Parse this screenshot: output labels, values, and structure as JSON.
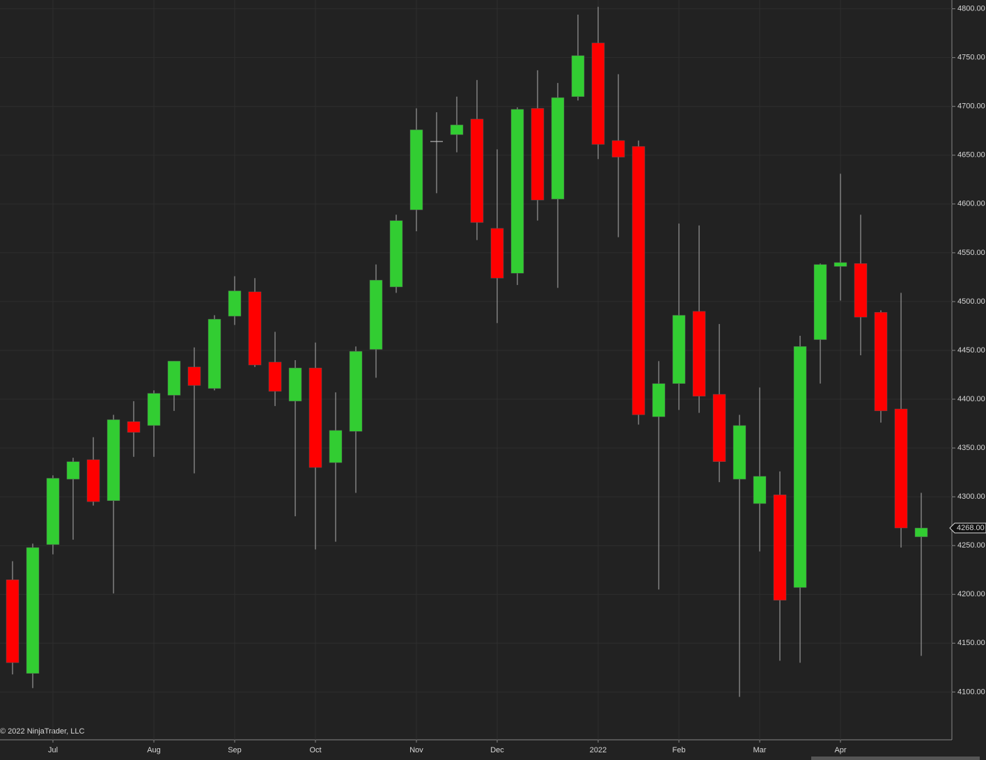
{
  "chart_data": {
    "type": "candlestick",
    "watermark": "© 2022 NinjaTrader, LLC",
    "categories": [
      null,
      null,
      "Jul",
      null,
      null,
      null,
      null,
      "Aug",
      null,
      null,
      null,
      "Sep",
      null,
      null,
      null,
      "Oct",
      null,
      null,
      null,
      null,
      "Nov",
      null,
      null,
      null,
      "Dec",
      null,
      null,
      null,
      null,
      "2022",
      null,
      null,
      null,
      "Feb",
      null,
      null,
      null,
      "Mar",
      null,
      null,
      null,
      "Apr",
      null,
      null,
      null,
      null
    ],
    "open": [
      4215,
      4119,
      4251,
      4318,
      4338,
      4296,
      4377,
      4373,
      4404,
      4433,
      4411,
      4485,
      4510,
      4438,
      4398,
      4432,
      4335,
      4367,
      4451,
      4515,
      4594,
      4664,
      4671,
      4687,
      4575,
      4529,
      4698,
      4605,
      4710,
      4765,
      4665,
      4659,
      4382,
      4416,
      4490,
      4405,
      4318,
      4293,
      4302,
      4207,
      4461,
      4536,
      4539,
      4489,
      4390,
      4259
    ],
    "high": [
      4234,
      4252,
      4322,
      4340,
      4361,
      4384,
      4398,
      4409,
      4439,
      4453,
      4486,
      4526,
      4524,
      4469,
      4440,
      4458,
      4407,
      4454,
      4538,
      4589,
      4698,
      4694,
      4710,
      4727,
      4656,
      4699,
      4737,
      4724,
      4794,
      4802,
      4733,
      4665,
      4439,
      4580,
      4578,
      4477,
      4384,
      4412,
      4326,
      4465,
      4539,
      4631,
      4589,
      4491,
      4509,
      4304
    ],
    "low": [
      4118,
      4104,
      4241,
      4256,
      4291,
      4201,
      4341,
      4341,
      4388,
      4324,
      4409,
      4476,
      4433,
      4393,
      4280,
      4246,
      4254,
      4304,
      4422,
      4509,
      4572,
      4611,
      4653,
      4563,
      4478,
      4517,
      4583,
      4514,
      4706,
      4646,
      4566,
      4374,
      4205,
      4389,
      4386,
      4315,
      4095,
      4244,
      4132,
      4130,
      4416,
      4501,
      4445,
      4376,
      4248,
      4137
    ],
    "close": [
      4130,
      4248,
      4319,
      4336,
      4295,
      4379,
      4366,
      4406,
      4439,
      4414,
      4482,
      4511,
      4435,
      4408,
      4432,
      4330,
      4368,
      4449,
      4522,
      4583,
      4676,
      4664,
      4681,
      4581,
      4524,
      4697,
      4604,
      4709,
      4752,
      4661,
      4648,
      4384,
      4416,
      4486,
      4403,
      4336,
      4373,
      4321,
      4194,
      4454,
      4538,
      4540,
      4484,
      4388,
      4268,
      4268
    ],
    "up_color": "#32cd32",
    "down_color": "#ff0000",
    "wick_color": "#b0b0b0",
    "last_price": {
      "value": 4268,
      "label": "4268.00"
    },
    "ylim": [
      4051,
      4809
    ],
    "yticks": [
      {
        "value": 4100,
        "label": "4100.00"
      },
      {
        "value": 4150,
        "label": "4150.00"
      },
      {
        "value": 4200,
        "label": "4200.00"
      },
      {
        "value": 4250,
        "label": "4250.00"
      },
      {
        "value": 4300,
        "label": "4300.00"
      },
      {
        "value": 4350,
        "label": "4350.00"
      },
      {
        "value": 4400,
        "label": "4400.00"
      },
      {
        "value": 4450,
        "label": "4450.00"
      },
      {
        "value": 4500,
        "label": "4500.00"
      },
      {
        "value": 4550,
        "label": "4550.00"
      },
      {
        "value": 4600,
        "label": "4600.00"
      },
      {
        "value": 4650,
        "label": "4650.00"
      },
      {
        "value": 4700,
        "label": "4700.00"
      },
      {
        "value": 4750,
        "label": "4750.00"
      },
      {
        "value": 4800,
        "label": "4800.00"
      }
    ],
    "grid": true
  }
}
